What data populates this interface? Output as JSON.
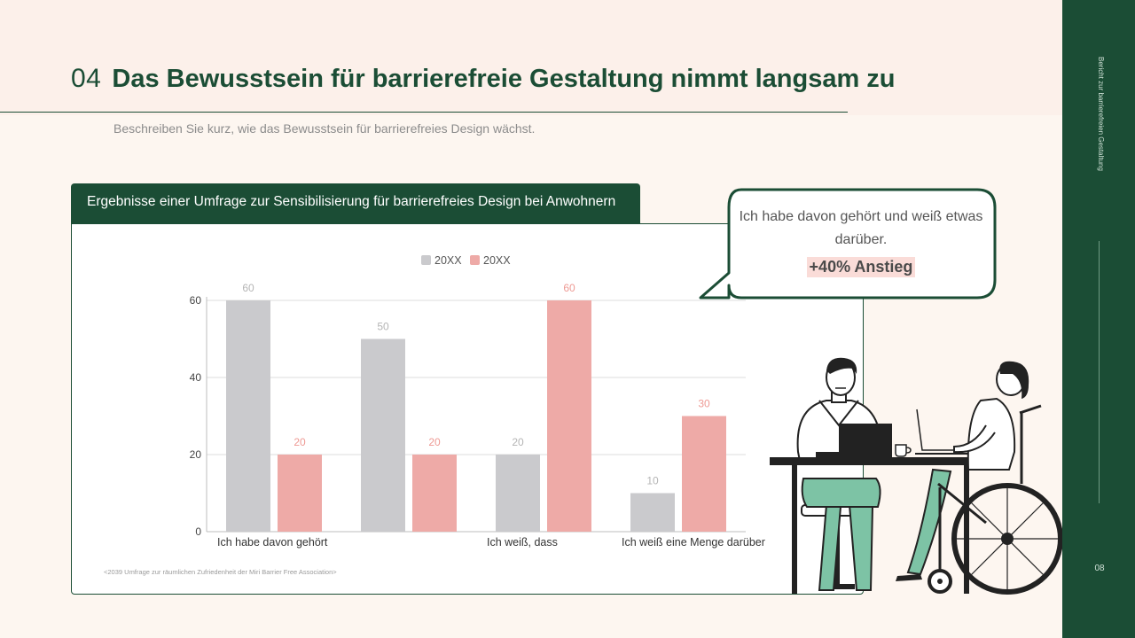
{
  "header": {
    "number": "04",
    "title": "Das Bewusstsein für barrierefreie Gestaltung nimmt langsam zu",
    "subtitle": "Beschreiben Sie kurz, wie das Bewusstsein für barrierefreies Design wächst."
  },
  "sidebar": {
    "vertical_text": "Bericht zur barrierefreien Gestaltung",
    "page_number": "08"
  },
  "chart_card": {
    "tab_title": "Ergebnisse einer Umfrage zur Sensibilisierung für barrierefreies Design bei Anwohnern",
    "source": "<2039 Umfrage zur räumlichen Zufriedenheit der Miri Barrier Free Association>"
  },
  "callout": {
    "text": "Ich habe davon gehört und weiß etwas darüber.",
    "highlight": "+40% Anstieg"
  },
  "chart_data": {
    "type": "bar",
    "categories": [
      "Ich habe davon gehört",
      "",
      "Ich weiß, dass",
      "Ich weiß eine Menge darüber"
    ],
    "series": [
      {
        "name": "20XX",
        "values": [
          60,
          50,
          20,
          10
        ],
        "color": "#cacacd",
        "label_color": "#b5b5b5"
      },
      {
        "name": "20XX",
        "values": [
          20,
          20,
          60,
          30
        ],
        "color": "#eeaaa7",
        "label_color": "#ee9a94"
      }
    ],
    "y_ticks": [
      0,
      20,
      40,
      60
    ],
    "ylim": [
      0,
      60
    ],
    "grid": true,
    "legend": "top-center"
  }
}
